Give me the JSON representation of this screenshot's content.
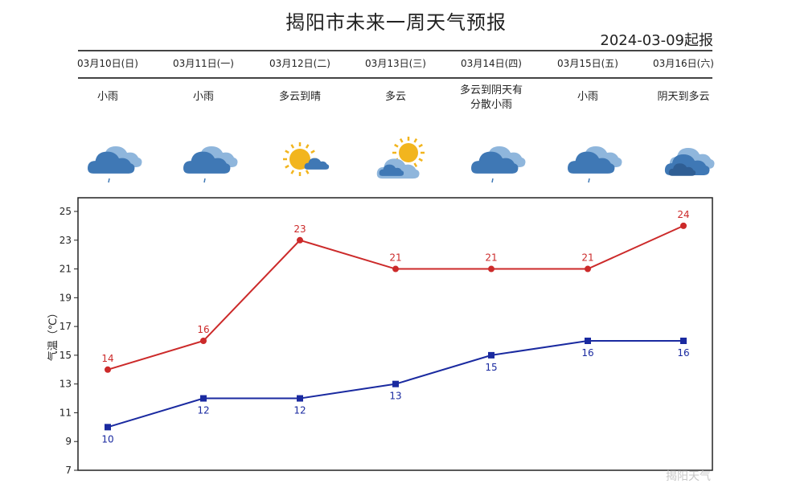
{
  "header": {
    "title": "揭阳市未来一周天气预报",
    "issue_date": "2024-03-09起报"
  },
  "days": [
    {
      "date": "03月10日(日)",
      "condition": "小雨",
      "icon": "cloud-rain-icon"
    },
    {
      "date": "03月11日(一)",
      "condition": "小雨",
      "icon": "cloud-rain-icon"
    },
    {
      "date": "03月12日(二)",
      "condition": "多云到晴",
      "icon": "sun-cloud-icon"
    },
    {
      "date": "03月13日(三)",
      "condition": "多云",
      "icon": "cloud-sun-icon"
    },
    {
      "date": "03月14日(四)",
      "condition": "多云到阴天有分散小雨",
      "icon": "cloud-rain-icon"
    },
    {
      "date": "03月15日(五)",
      "condition": "小雨",
      "icon": "cloud-rain-icon"
    },
    {
      "date": "03月16日(六)",
      "condition": "阴天到多云",
      "icon": "overcast-icon"
    }
  ],
  "chart_data": {
    "type": "line",
    "categories": [
      "03月10日(日)",
      "03月11日(一)",
      "03月12日(二)",
      "03月13日(三)",
      "03月14日(四)",
      "03月15日(五)",
      "03月16日(六)"
    ],
    "series": [
      {
        "values": [
          14,
          16,
          23,
          21,
          21,
          21,
          24
        ],
        "color": "#cc2a2a",
        "marker": "circle"
      },
      {
        "values": [
          10,
          12,
          12,
          13,
          15,
          16,
          16
        ],
        "color": "#1a2aa0",
        "marker": "square"
      }
    ],
    "ylabel": "气温（℃）",
    "ylim": [
      7,
      25
    ],
    "yticks": [
      7,
      9,
      11,
      13,
      15,
      17,
      19,
      21,
      23,
      25
    ],
    "grid": false,
    "legend": "none"
  },
  "watermark": "揭阳天气",
  "colors": {
    "high": "#cc2a2a",
    "low": "#1a2aa0",
    "cloud": "#3f78b5",
    "cloud_light": "#8fb6dc",
    "sun": "#f2b51e"
  }
}
